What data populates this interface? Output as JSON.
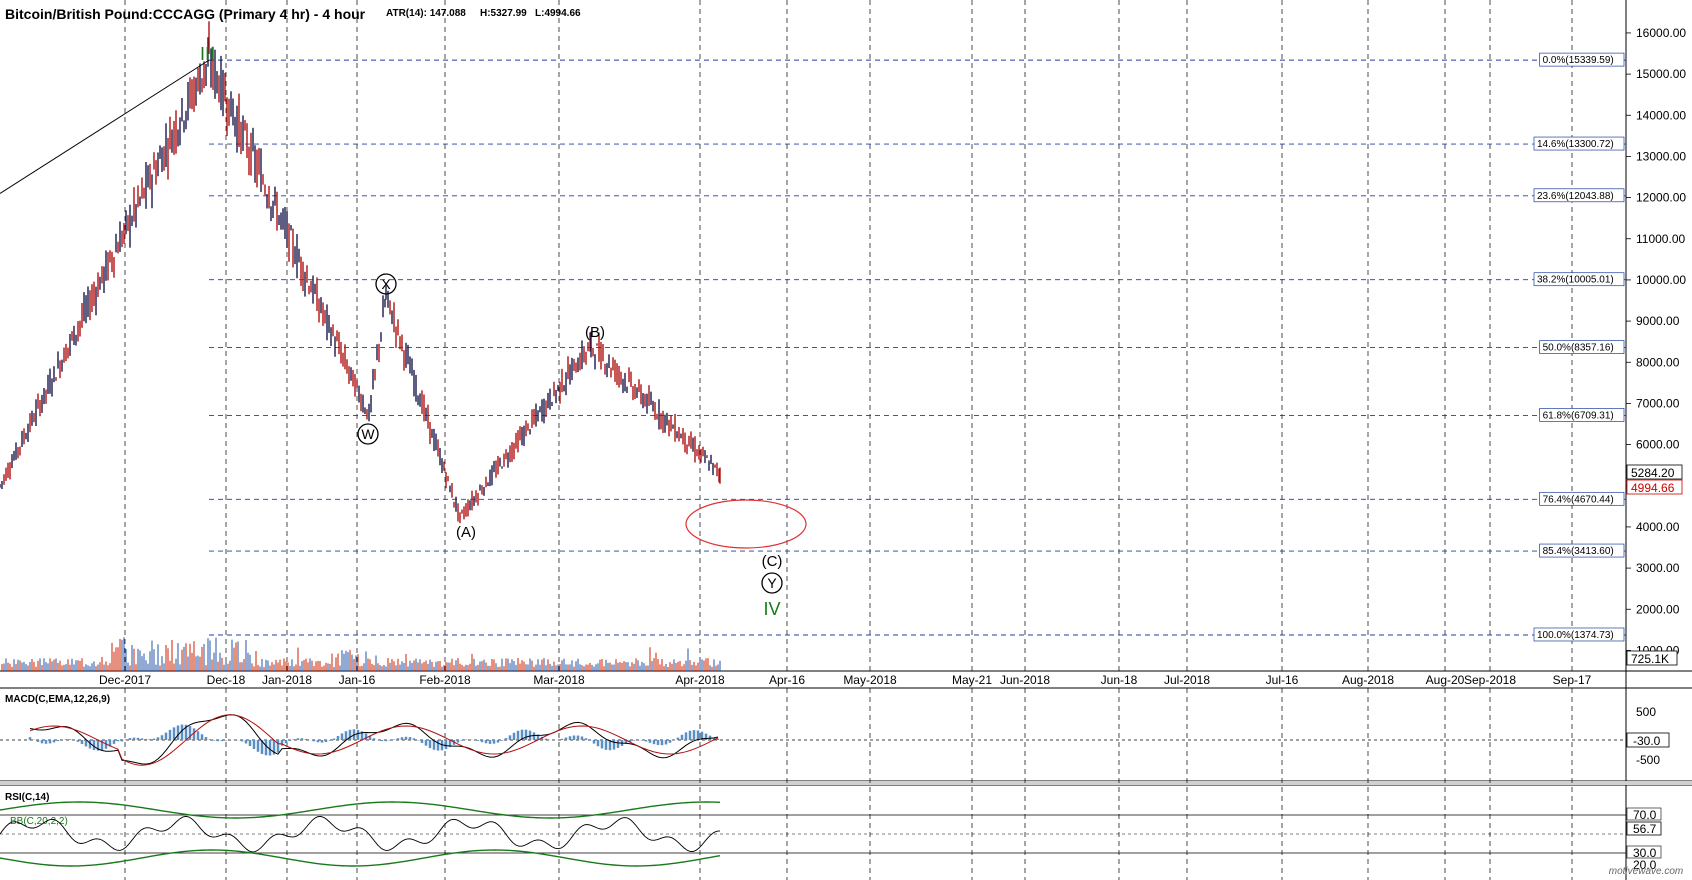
{
  "header": {
    "title": "Bitcoin/British Pound:CCCAGG (Primary 4 hr) - 4 hour",
    "atr": "ATR(14): 147.088",
    "high": "H:5327.99",
    "low": "L:4994.66"
  },
  "watermark": "motivewave.com",
  "chart_data": [
    {
      "type": "line",
      "panel": "price",
      "ylim": [
        500,
        16800
      ],
      "y_ticks": [
        "1000.00",
        "2000.00",
        "3000.00",
        "4000.00",
        "5000.00",
        "6000.00",
        "7000.00",
        "8000.00",
        "9000.00",
        "10000.00",
        "11000.00",
        "12000.00",
        "13000.00",
        "14000.00",
        "15000.00",
        "16000.00"
      ],
      "x_ticks": [
        "Dec-2017",
        "Dec-18",
        "Jan-2018",
        "Jan-16",
        "Feb-2018",
        "Mar-2018",
        "Apr-2018",
        "Apr-16",
        "May-2018",
        "May-21",
        "Jun-2018",
        "Jun-18",
        "Jul-2018",
        "Jul-16",
        "Aug-2018",
        "Aug-20",
        "Sep-2018",
        "Sep-17"
      ],
      "price_labels": {
        "current": "5284.20",
        "last_close": "4994.66",
        "volume": "725.1K"
      },
      "key_points": [
        {
          "label": "start",
          "value": 5000
        },
        {
          "label": "III",
          "value": 15339.59
        },
        {
          "label": "W",
          "value": 6700
        },
        {
          "label": "X",
          "value": 9600
        },
        {
          "label": "(A)",
          "value": 4230
        },
        {
          "label": "(B)",
          "value": 8400
        },
        {
          "label": "last",
          "value": 5284.2
        }
      ],
      "fib_levels": [
        {
          "label": "0.0%(15339.59)",
          "value": 15339.59
        },
        {
          "label": "14.6%(13300.72)",
          "value": 13300.72
        },
        {
          "label": "23.6%(12043.88)",
          "value": 12043.88
        },
        {
          "label": "38.2%(10005.01)",
          "value": 10005.01
        },
        {
          "label": "50.0%(8357.16)",
          "value": 8357.16
        },
        {
          "label": "61.8%(6709.31)",
          "value": 6709.31
        },
        {
          "label": "76.4%(4670.44)",
          "value": 4670.44
        },
        {
          "label": "85.4%(3413.60)",
          "value": 3413.6
        },
        {
          "label": "100.0%(1374.73)",
          "value": 1374.73
        }
      ],
      "wave_labels": [
        {
          "text": "III",
          "color": "#1a7a1a"
        },
        {
          "text": "W",
          "circled": true
        },
        {
          "text": "X",
          "circled": true
        },
        {
          "text": "(A)"
        },
        {
          "text": "(B)"
        },
        {
          "text": "(C)"
        },
        {
          "text": "Y",
          "circled": true
        },
        {
          "text": "IV",
          "color": "#1a7a1a"
        }
      ]
    },
    {
      "type": "line",
      "panel": "macd",
      "title": "MACD(C,EMA,12,26,9)",
      "y_ticks": [
        "500",
        "-500"
      ],
      "current_value": "-30.0"
    },
    {
      "type": "line",
      "panel": "rsi",
      "title": "RSI(C,14)",
      "overlay_label": "BB(C,20,2,2)",
      "levels": [
        "70.0",
        "30.0"
      ],
      "current_value": "56.7",
      "bottom_tick": "20.0"
    }
  ],
  "colors": {
    "fib_line": "#1f3f9f",
    "up_candle": "#1a1a4d",
    "down_candle": "#b01010",
    "volume_red": "#cc2200",
    "volume_blue": "#2255aa",
    "volume_area": "#f4b58a",
    "ellipse": "#e03030",
    "green": "#1a7a1a",
    "macd_hist": "#5b8ec4",
    "price_tag_red": "#cc0000"
  }
}
